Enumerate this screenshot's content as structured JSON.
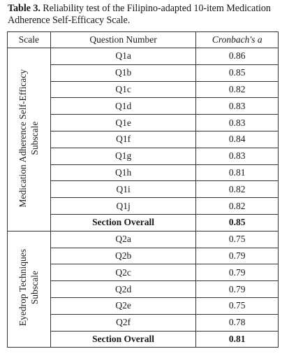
{
  "caption": {
    "label": "Table 3.",
    "text": " Reliability test of the Filipino-adapted 10-item Medication Adherence Self-Efficacy Scale."
  },
  "table": {
    "headers": [
      "Scale",
      "Question Number",
      "Cronbach's a"
    ],
    "groups": [
      {
        "scale_line1": "Medication Adherence Self-Efficacy",
        "scale_line2": "Subscale",
        "rows": [
          {
            "q": "Q1a",
            "a": "0.86"
          },
          {
            "q": "Q1b",
            "a": "0.85"
          },
          {
            "q": "Q1c",
            "a": "0.82"
          },
          {
            "q": "Q1d",
            "a": "0.83"
          },
          {
            "q": "Q1e",
            "a": "0.83"
          },
          {
            "q": "Q1f",
            "a": "0.84"
          },
          {
            "q": "Q1g",
            "a": "0.83"
          },
          {
            "q": "Q1h",
            "a": "0.81"
          },
          {
            "q": "Q1i",
            "a": "0.82"
          },
          {
            "q": "Q1j",
            "a": "0.82"
          }
        ],
        "overall_label": "Section Overall",
        "overall_value": "0.85"
      },
      {
        "scale_line1": "Eyedrop Techniques",
        "scale_line2": "Subscale",
        "rows": [
          {
            "q": "Q2a",
            "a": "0.75"
          },
          {
            "q": "Q2b",
            "a": "0.79"
          },
          {
            "q": "Q2c",
            "a": "0.79"
          },
          {
            "q": "Q2d",
            "a": "0.79"
          },
          {
            "q": "Q2e",
            "a": "0.75"
          },
          {
            "q": "Q2f",
            "a": "0.78"
          }
        ],
        "overall_label": "Section Overall",
        "overall_value": "0.81"
      }
    ]
  }
}
